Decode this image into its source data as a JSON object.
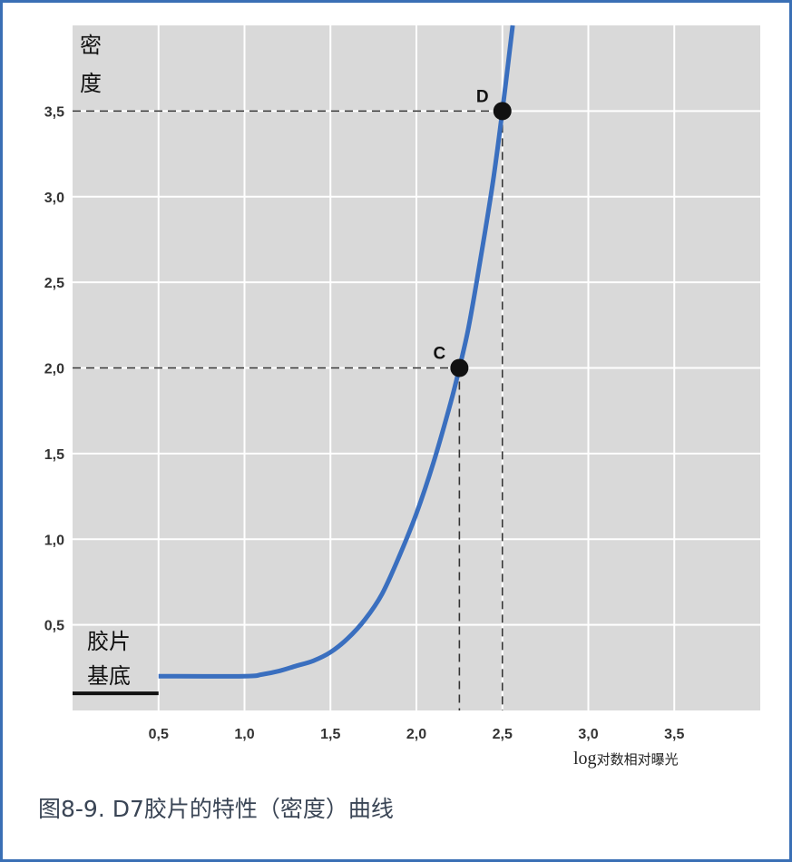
{
  "chart_data": {
    "type": "line",
    "ylabel": "密度",
    "xlabel_prefix": "log",
    "xlabel": "对数相对曝光",
    "xlim": [
      0,
      4.0
    ],
    "ylim": [
      0,
      4.0
    ],
    "grid": true,
    "x_ticks": [
      "0,5",
      "1,0",
      "1,5",
      "2,0",
      "2,5",
      "3,0",
      "3,5"
    ],
    "x_tick_values": [
      0.5,
      1.0,
      1.5,
      2.0,
      2.5,
      3.0,
      3.5
    ],
    "y_ticks": [
      "0,5",
      "1,0",
      "1,5",
      "2,0",
      "2,5",
      "3,0",
      "3,5"
    ],
    "y_tick_values": [
      0.5,
      1.0,
      1.5,
      2.0,
      2.5,
      3.0,
      3.5
    ],
    "series": [
      {
        "color": "#3a6fbf",
        "x": [
          0.5,
          1.0,
          1.1,
          1.2,
          1.3,
          1.4,
          1.5,
          1.6,
          1.7,
          1.8,
          1.9,
          2.0,
          2.1,
          2.2,
          2.25,
          2.3,
          2.35,
          2.4,
          2.45,
          2.5,
          2.56
        ],
        "y": [
          0.2,
          0.2,
          0.21,
          0.23,
          0.26,
          0.29,
          0.34,
          0.42,
          0.53,
          0.68,
          0.9,
          1.15,
          1.45,
          1.8,
          2.0,
          2.22,
          2.5,
          2.8,
          3.12,
          3.5,
          4.0
        ]
      }
    ],
    "base_line": {
      "label": "胶片基底",
      "label_lines": [
        "胶片",
        "基底"
      ],
      "x": [
        0,
        0.5
      ],
      "y": 0.1,
      "color": "#111111"
    },
    "points": [
      {
        "label": "C",
        "x": 2.25,
        "y": 2.0
      },
      {
        "label": "D",
        "x": 2.5,
        "y": 3.5
      }
    ],
    "plot_background": "#d9d9d9",
    "grid_color": "#ffffff"
  },
  "caption": "图8-9. D7胶片的特性（密度）曲线"
}
